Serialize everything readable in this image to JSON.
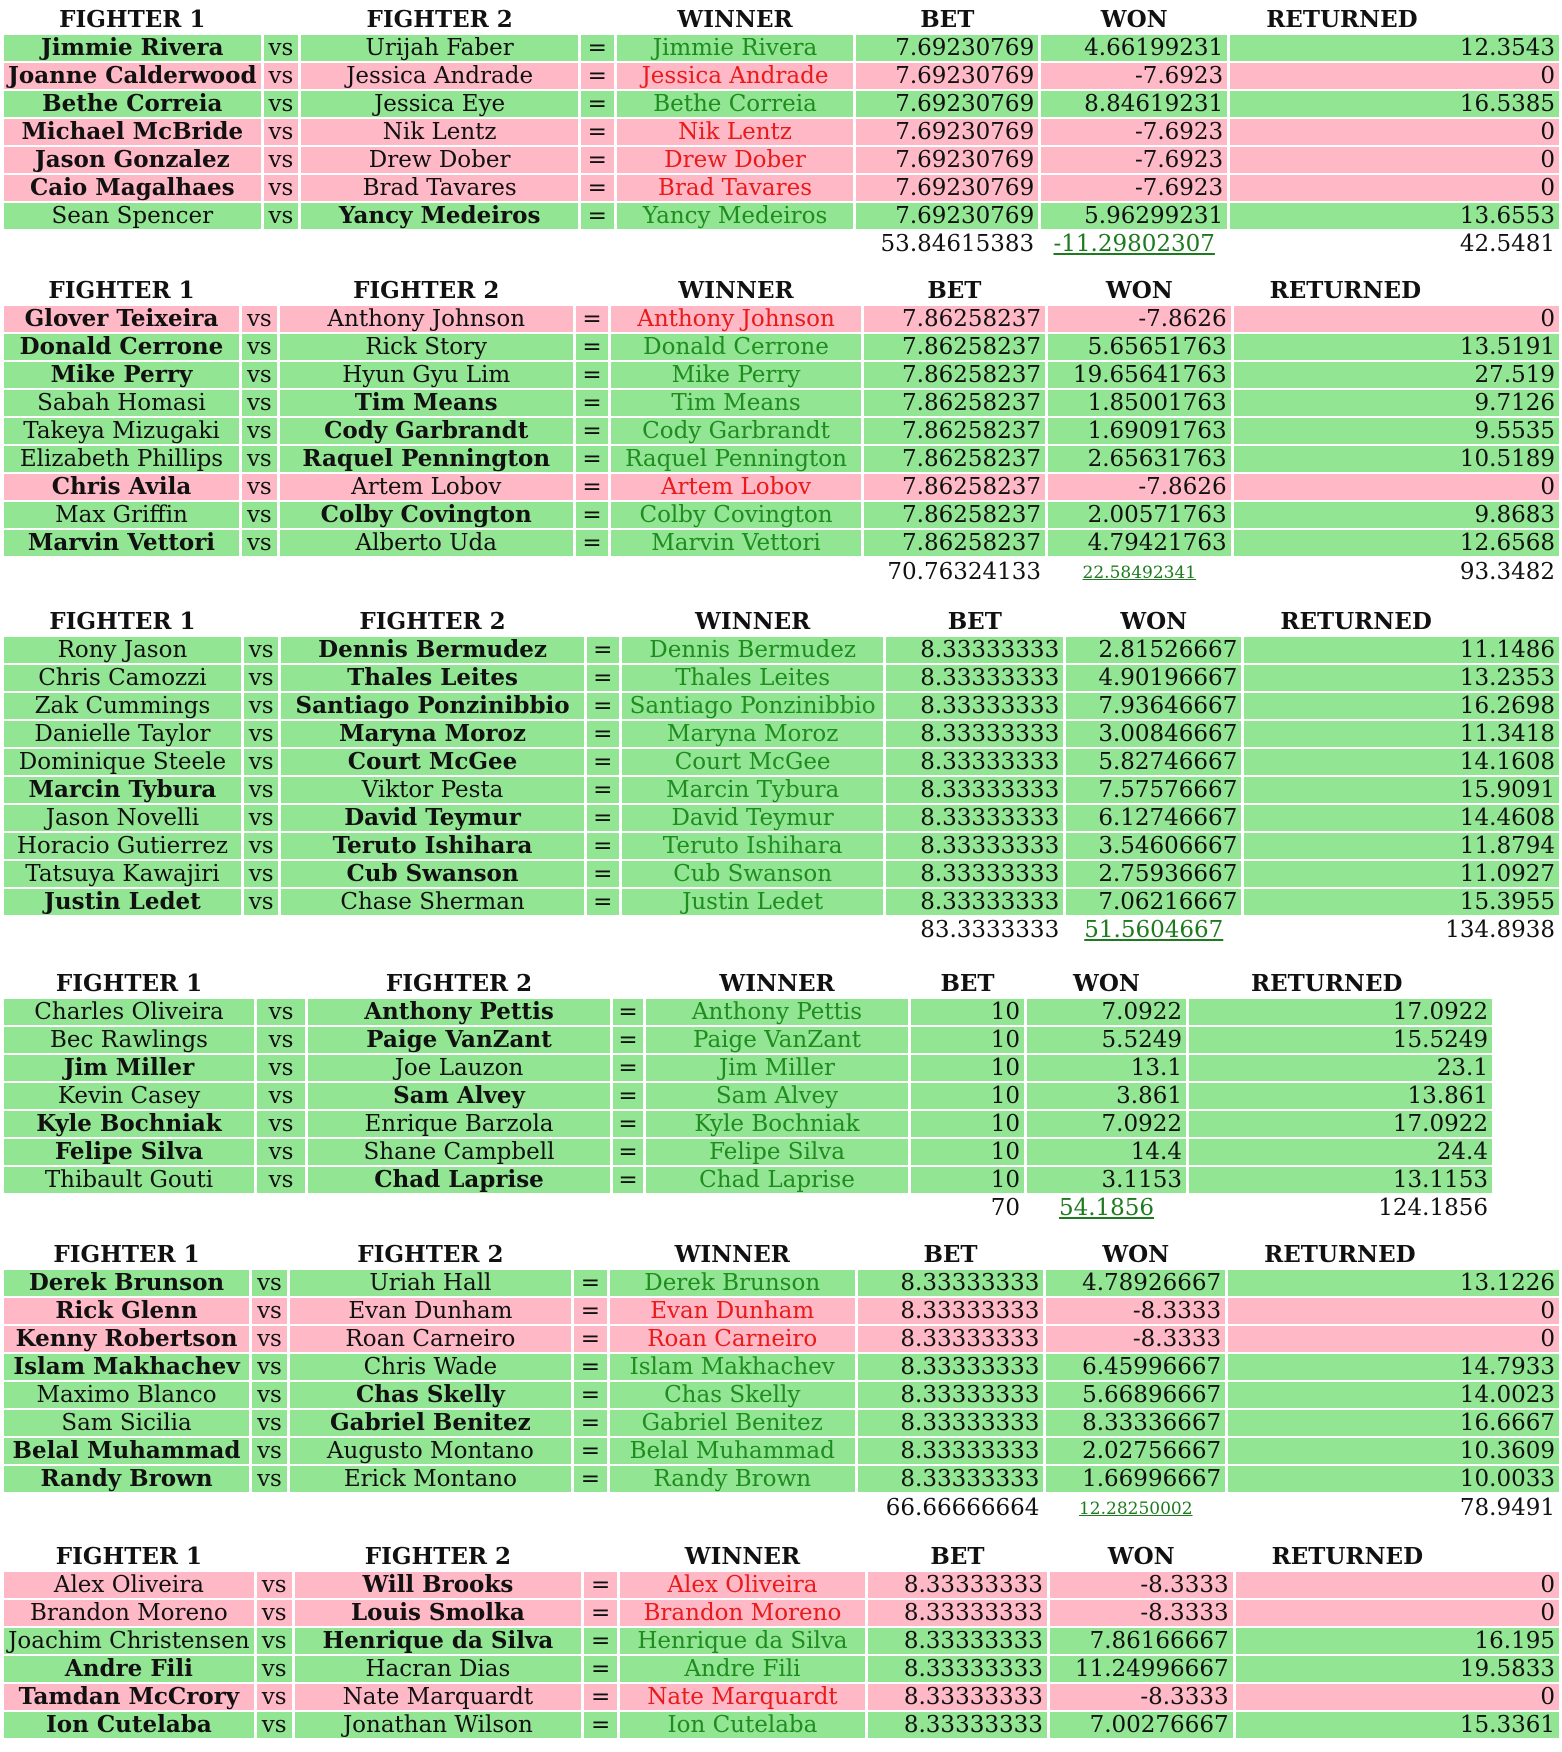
{
  "headers": {
    "fighter1": "FIGHTER 1",
    "fighter2": "FIGHTER 2",
    "winner": "WINNER",
    "bet": "BET",
    "won": "WON",
    "returned": "RETURNED"
  },
  "vs_label": "vs",
  "eq_label": "=",
  "colors": {
    "win_row": "#92e592",
    "loss_row": "#ffb8c6",
    "win_text": "#1e8c1e",
    "loss_text": "#e81a1a"
  },
  "blocks": [
    {
      "rows": [
        {
          "f1": "Jimmie Rivera",
          "f2": "Urijah Faber",
          "winner": "Jimmie Rivera",
          "bet": "7.69230769",
          "won": "4.66199231",
          "returned": "12.3543",
          "result": "win",
          "bold": 1
        },
        {
          "f1": "Joanne Calderwood",
          "f2": "Jessica Andrade",
          "winner": "Jessica Andrade",
          "bet": "7.69230769",
          "won": "-7.6923",
          "returned": "0",
          "result": "loss",
          "bold": 1
        },
        {
          "f1": "Bethe Correia",
          "f2": "Jessica Eye",
          "winner": "Bethe Correia",
          "bet": "7.69230769",
          "won": "8.84619231",
          "returned": "16.5385",
          "result": "win",
          "bold": 1
        },
        {
          "f1": "Michael McBride",
          "f2": "Nik Lentz",
          "winner": "Nik Lentz",
          "bet": "7.69230769",
          "won": "-7.6923",
          "returned": "0",
          "result": "loss",
          "bold": 1
        },
        {
          "f1": "Jason Gonzalez",
          "f2": "Drew Dober",
          "winner": "Drew Dober",
          "bet": "7.69230769",
          "won": "-7.6923",
          "returned": "0",
          "result": "loss",
          "bold": 1
        },
        {
          "f1": "Caio Magalhaes",
          "f2": "Brad Tavares",
          "winner": "Brad Tavares",
          "bet": "7.69230769",
          "won": "-7.6923",
          "returned": "0",
          "result": "loss",
          "bold": 1
        },
        {
          "f1": "Sean Spencer",
          "f2": "Yancy Medeiros",
          "winner": "Yancy Medeiros",
          "bet": "7.69230769",
          "won": "5.96299231",
          "returned": "13.6553",
          "result": "win",
          "bold": 2
        }
      ],
      "totals": {
        "bet": "53.84615383",
        "won": "-11.29802307",
        "returned": "42.5481"
      }
    },
    {
      "rows": [
        {
          "f1": "Glover Teixeira",
          "f2": "Anthony Johnson",
          "winner": "Anthony Johnson",
          "bet": "7.86258237",
          "won": "-7.8626",
          "returned": "0",
          "result": "loss",
          "bold": 1
        },
        {
          "f1": "Donald Cerrone",
          "f2": "Rick Story",
          "winner": "Donald Cerrone",
          "bet": "7.86258237",
          "won": "5.65651763",
          "returned": "13.5191",
          "result": "win",
          "bold": 1
        },
        {
          "f1": "Mike Perry",
          "f2": "Hyun Gyu Lim",
          "winner": "Mike Perry",
          "bet": "7.86258237",
          "won": "19.65641763",
          "returned": "27.519",
          "result": "win",
          "bold": 1
        },
        {
          "f1": "Sabah Homasi",
          "f2": "Tim Means",
          "winner": "Tim Means",
          "bet": "7.86258237",
          "won": "1.85001763",
          "returned": "9.7126",
          "result": "win",
          "bold": 2
        },
        {
          "f1": "Takeya Mizugaki",
          "f2": "Cody Garbrandt",
          "winner": "Cody Garbrandt",
          "bet": "7.86258237",
          "won": "1.69091763",
          "returned": "9.5535",
          "result": "win",
          "bold": 2
        },
        {
          "f1": "Elizabeth Phillips",
          "f2": "Raquel Pennington",
          "winner": "Raquel Pennington",
          "bet": "7.86258237",
          "won": "2.65631763",
          "returned": "10.5189",
          "result": "win",
          "bold": 2
        },
        {
          "f1": "Chris Avila",
          "f2": "Artem Lobov",
          "winner": "Artem Lobov",
          "bet": "7.86258237",
          "won": "-7.8626",
          "returned": "0",
          "result": "loss",
          "bold": 1
        },
        {
          "f1": "Max Griffin",
          "f2": "Colby Covington",
          "winner": "Colby Covington",
          "bet": "7.86258237",
          "won": "2.00571763",
          "returned": "9.8683",
          "result": "win",
          "bold": 2
        },
        {
          "f1": "Marvin Vettori",
          "f2": "Alberto Uda",
          "winner": "Marvin Vettori",
          "bet": "7.86258237",
          "won": "4.79421763",
          "returned": "12.6568",
          "result": "win",
          "bold": 1
        }
      ],
      "totals": {
        "bet": "70.76324133",
        "won": "22.58492341",
        "returned": "93.3482"
      }
    },
    {
      "rows": [
        {
          "f1": "Rony Jason",
          "f2": "Dennis Bermudez",
          "winner": "Dennis Bermudez",
          "bet": "8.33333333",
          "won": "2.81526667",
          "returned": "11.1486",
          "result": "win",
          "bold": 2
        },
        {
          "f1": "Chris Camozzi",
          "f2": "Thales Leites",
          "winner": "Thales Leites",
          "bet": "8.33333333",
          "won": "4.90196667",
          "returned": "13.2353",
          "result": "win",
          "bold": 2
        },
        {
          "f1": "Zak Cummings",
          "f2": "Santiago Ponzinibbio",
          "winner": "Santiago Ponzinibbio",
          "bet": "8.33333333",
          "won": "7.93646667",
          "returned": "16.2698",
          "result": "win",
          "bold": 2
        },
        {
          "f1": "Danielle Taylor",
          "f2": "Maryna Moroz",
          "winner": "Maryna Moroz",
          "bet": "8.33333333",
          "won": "3.00846667",
          "returned": "11.3418",
          "result": "win",
          "bold": 2
        },
        {
          "f1": "Dominique Steele",
          "f2": "Court McGee",
          "winner": "Court McGee",
          "bet": "8.33333333",
          "won": "5.82746667",
          "returned": "14.1608",
          "result": "win",
          "bold": 2
        },
        {
          "f1": "Marcin Tybura",
          "f2": "Viktor Pesta",
          "winner": "Marcin Tybura",
          "bet": "8.33333333",
          "won": "7.57576667",
          "returned": "15.9091",
          "result": "win",
          "bold": 1
        },
        {
          "f1": "Jason Novelli",
          "f2": "David Teymur",
          "winner": "David Teymur",
          "bet": "8.33333333",
          "won": "6.12746667",
          "returned": "14.4608",
          "result": "win",
          "bold": 2
        },
        {
          "f1": "Horacio Gutierrez",
          "f2": "Teruto Ishihara",
          "winner": "Teruto Ishihara",
          "bet": "8.33333333",
          "won": "3.54606667",
          "returned": "11.8794",
          "result": "win",
          "bold": 2
        },
        {
          "f1": "Tatsuya Kawajiri",
          "f2": "Cub Swanson",
          "winner": "Cub Swanson",
          "bet": "8.33333333",
          "won": "2.75936667",
          "returned": "11.0927",
          "result": "win",
          "bold": 2
        },
        {
          "f1": "Justin Ledet",
          "f2": "Chase Sherman",
          "winner": "Justin Ledet",
          "bet": "8.33333333",
          "won": "7.06216667",
          "returned": "15.3955",
          "result": "win",
          "bold": 1
        }
      ],
      "totals": {
        "bet": "83.3333333",
        "won": "51.5604667",
        "returned": "134.8938"
      }
    },
    {
      "rows": [
        {
          "f1": "Charles Oliveira",
          "f2": "Anthony Pettis",
          "winner": "Anthony Pettis",
          "bet": "10",
          "won": "7.0922",
          "returned": "17.0922",
          "result": "win",
          "bold": 2
        },
        {
          "f1": "Bec Rawlings",
          "f2": "Paige VanZant",
          "winner": "Paige VanZant",
          "bet": "10",
          "won": "5.5249",
          "returned": "15.5249",
          "result": "win",
          "bold": 2
        },
        {
          "f1": "Jim Miller",
          "f2": "Joe Lauzon",
          "winner": "Jim Miller",
          "bet": "10",
          "won": "13.1",
          "returned": "23.1",
          "result": "win",
          "bold": 1
        },
        {
          "f1": "Kevin Casey",
          "f2": "Sam Alvey",
          "winner": "Sam Alvey",
          "bet": "10",
          "won": "3.861",
          "returned": "13.861",
          "result": "win",
          "bold": 2
        },
        {
          "f1": "Kyle Bochniak",
          "f2": "Enrique Barzola",
          "winner": "Kyle Bochniak",
          "bet": "10",
          "won": "7.0922",
          "returned": "17.0922",
          "result": "win",
          "bold": 1
        },
        {
          "f1": "Felipe Silva",
          "f2": "Shane Campbell",
          "winner": "Felipe Silva",
          "bet": "10",
          "won": "14.4",
          "returned": "24.4",
          "result": "win",
          "bold": 1
        },
        {
          "f1": "Thibault Gouti",
          "f2": "Chad Laprise",
          "winner": "Chad Laprise",
          "bet": "10",
          "won": "3.1153",
          "returned": "13.1153",
          "result": "win",
          "bold": 2
        }
      ],
      "totals": {
        "bet": "70",
        "won": "54.1856",
        "returned": "124.1856"
      }
    },
    {
      "rows": [
        {
          "f1": "Derek Brunson",
          "f2": "Uriah Hall",
          "winner": "Derek Brunson",
          "bet": "8.33333333",
          "won": "4.78926667",
          "returned": "13.1226",
          "result": "win",
          "bold": 1
        },
        {
          "f1": "Rick Glenn",
          "f2": "Evan Dunham",
          "winner": "Evan Dunham",
          "bet": "8.33333333",
          "won": "-8.3333",
          "returned": "0",
          "result": "loss",
          "bold": 1
        },
        {
          "f1": "Kenny Robertson",
          "f2": "Roan Carneiro",
          "winner": "Roan Carneiro",
          "bet": "8.33333333",
          "won": "-8.3333",
          "returned": "0",
          "result": "loss",
          "bold": 1
        },
        {
          "f1": "Islam Makhachev",
          "f2": "Chris Wade",
          "winner": "Islam Makhachev",
          "bet": "8.33333333",
          "won": "6.45996667",
          "returned": "14.7933",
          "result": "win",
          "bold": 1
        },
        {
          "f1": "Maximo Blanco",
          "f2": "Chas Skelly",
          "winner": "Chas Skelly",
          "bet": "8.33333333",
          "won": "5.66896667",
          "returned": "14.0023",
          "result": "win",
          "bold": 2
        },
        {
          "f1": "Sam Sicilia",
          "f2": "Gabriel Benitez",
          "winner": "Gabriel Benitez",
          "bet": "8.33333333",
          "won": "8.33336667",
          "returned": "16.6667",
          "result": "win",
          "bold": 2
        },
        {
          "f1": "Belal Muhammad",
          "f2": "Augusto Montano",
          "winner": "Belal Muhammad",
          "bet": "8.33333333",
          "won": "2.02756667",
          "returned": "10.3609",
          "result": "win",
          "bold": 1
        },
        {
          "f1": "Randy Brown",
          "f2": "Erick Montano",
          "winner": "Randy Brown",
          "bet": "8.33333333",
          "won": "1.66996667",
          "returned": "10.0033",
          "result": "win",
          "bold": 1
        }
      ],
      "totals": {
        "bet": "66.66666664",
        "won": "12.28250002",
        "returned": "78.9491"
      }
    },
    {
      "rows": [
        {
          "f1": "Alex Oliveira",
          "f2": "Will Brooks",
          "winner": "Alex Oliveira",
          "bet": "8.33333333",
          "won": "-8.3333",
          "returned": "0",
          "result": "loss",
          "bold": 2
        },
        {
          "f1": "Brandon Moreno",
          "f2": "Louis Smolka",
          "winner": "Brandon Moreno",
          "bet": "8.33333333",
          "won": "-8.3333",
          "returned": "0",
          "result": "loss",
          "bold": 2
        },
        {
          "f1": "Joachim Christensen",
          "f2": "Henrique da Silva",
          "winner": "Henrique da Silva",
          "bet": "8.33333333",
          "won": "7.86166667",
          "returned": "16.195",
          "result": "win",
          "bold": 2
        },
        {
          "f1": "Andre Fili",
          "f2": "Hacran Dias",
          "winner": "Andre Fili",
          "bet": "8.33333333",
          "won": "11.24996667",
          "returned": "19.5833",
          "result": "win",
          "bold": 1
        },
        {
          "f1": "Tamdan McCrory",
          "f2": "Nate Marquardt",
          "winner": "Nate Marquardt",
          "bet": "8.33333333",
          "won": "-8.3333",
          "returned": "0",
          "result": "loss",
          "bold": 1
        },
        {
          "f1": "Ion Cutelaba",
          "f2": "Jonathan Wilson",
          "winner": "Ion Cutelaba",
          "bet": "8.33333333",
          "won": "7.00276667",
          "returned": "15.3361",
          "result": "win",
          "bold": 1
        }
      ],
      "totals": null
    }
  ]
}
